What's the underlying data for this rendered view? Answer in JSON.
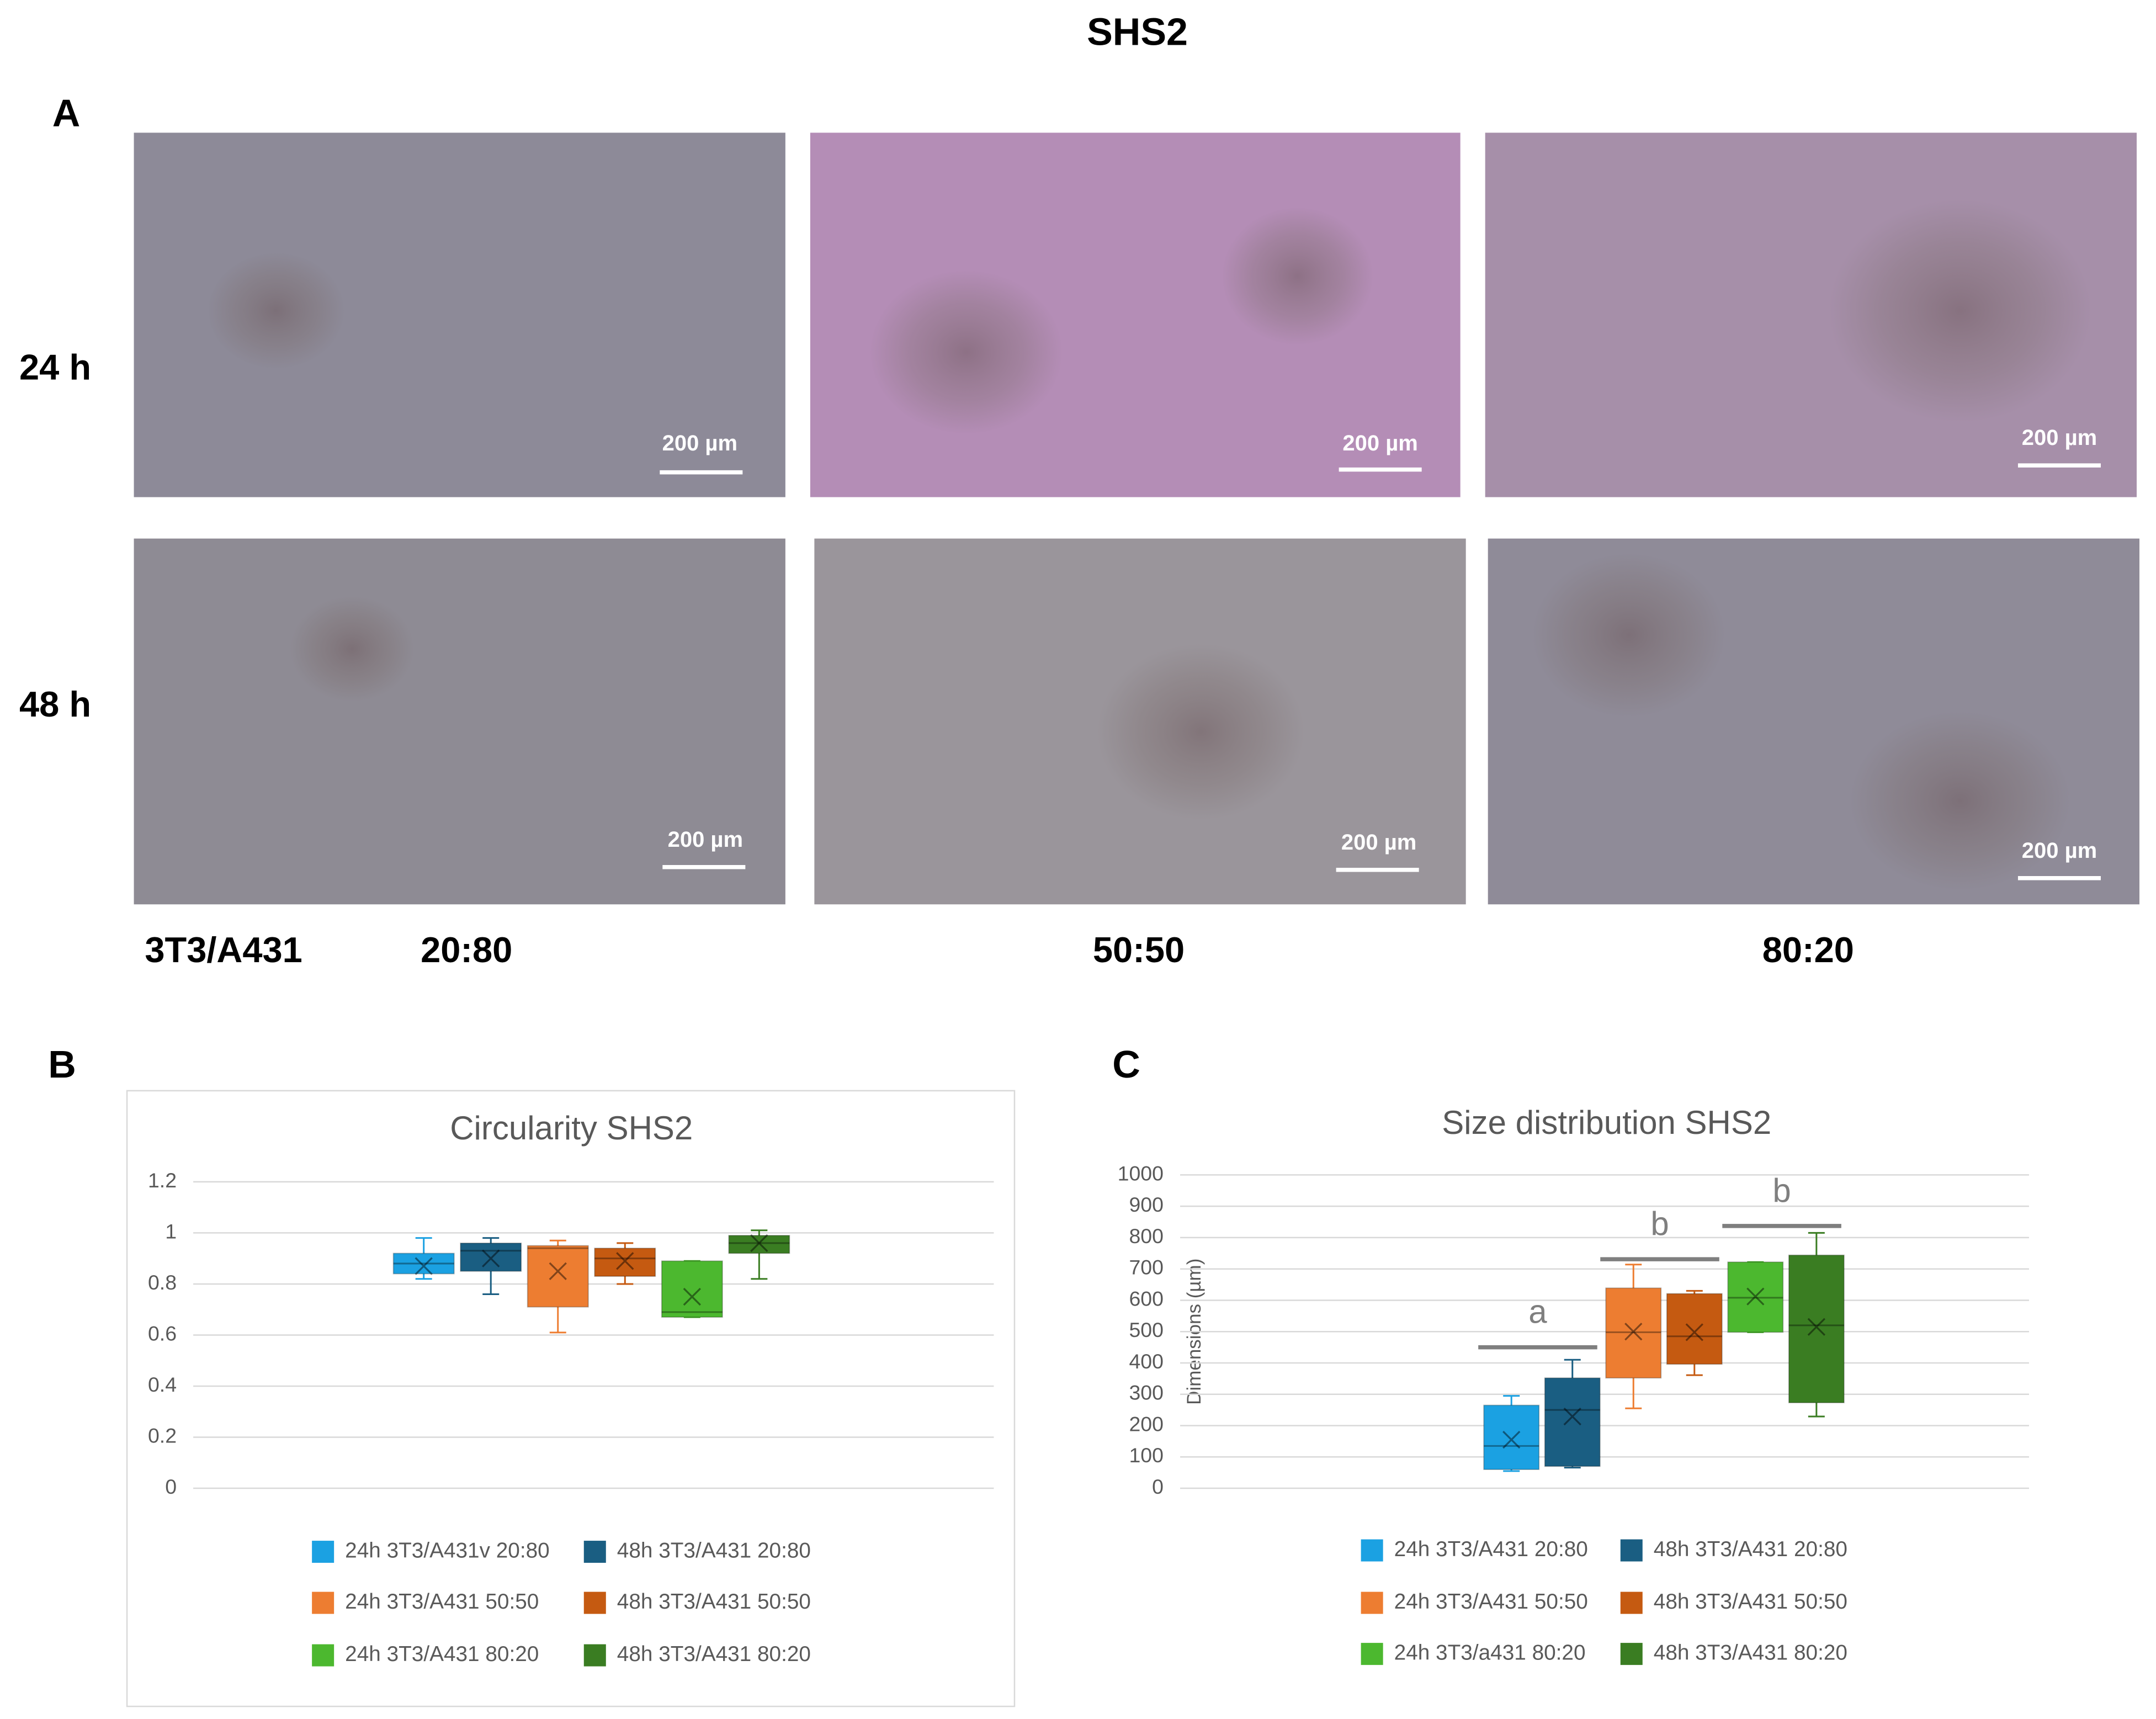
{
  "figure": {
    "title": "SHS2",
    "panels": {
      "a": "A",
      "b": "B",
      "c": "C"
    }
  },
  "micrographs": {
    "rows": [
      "24 h",
      "48 h"
    ],
    "ratio_label": "3T3/A431",
    "columns": [
      "20:80",
      "50:50",
      "80:20"
    ],
    "scale_bars": [
      "200 µm",
      "200 µm",
      "200 µm",
      "200 µm",
      "200 µm",
      "200 µm"
    ]
  },
  "chart_data": [
    {
      "type": "box",
      "title": "Circularity SHS2",
      "ylim": [
        0,
        1.2
      ],
      "yticks": [
        0,
        0.2,
        0.4,
        0.6,
        0.8,
        1,
        1.2
      ],
      "grid": true,
      "series": [
        {
          "name": "24h 3T3/A431v 20:80",
          "color": "#1ba1e2",
          "min": 0.82,
          "q1": 0.84,
          "median": 0.88,
          "q3": 0.92,
          "max": 0.98,
          "mean": 0.87
        },
        {
          "name": "48h 3T3/A431 20:80",
          "color": "#1a5e82",
          "min": 0.76,
          "q1": 0.85,
          "median": 0.93,
          "q3": 0.96,
          "max": 0.98,
          "mean": 0.9
        },
        {
          "name": "24h 3T3/A431 50:50",
          "color": "#ed7d31",
          "min": 0.61,
          "q1": 0.71,
          "median": 0.94,
          "q3": 0.95,
          "max": 0.97,
          "mean": 0.85
        },
        {
          "name": "48h 3T3/A431 50:50",
          "color": "#c55a11",
          "min": 0.8,
          "q1": 0.83,
          "median": 0.9,
          "q3": 0.94,
          "max": 0.96,
          "mean": 0.89
        },
        {
          "name": "24h 3T3/A431 80:20",
          "color": "#4cb82f",
          "min": 0.67,
          "q1": 0.67,
          "median": 0.69,
          "q3": 0.89,
          "max": 0.89,
          "mean": 0.75
        },
        {
          "name": "48h 3T3/A431 80:20",
          "color": "#3a7d22",
          "min": 0.82,
          "q1": 0.92,
          "median": 0.96,
          "q3": 0.99,
          "max": 1.01,
          "mean": 0.96
        }
      ]
    },
    {
      "type": "box",
      "title": "Size distribution SHS2",
      "ylabel": "Dimensions (µm)",
      "ylim": [
        0,
        1000
      ],
      "yticks": [
        0,
        100,
        200,
        300,
        400,
        500,
        600,
        700,
        800,
        900,
        1000
      ],
      "grid": true,
      "series": [
        {
          "name": "24h 3T3/A431 20:80",
          "color": "#1ba1e2",
          "min": 55,
          "q1": 60,
          "median": 135,
          "q3": 265,
          "max": 295,
          "mean": 155
        },
        {
          "name": "48h 3T3/A431 20:80",
          "color": "#1a5e82",
          "min": 66,
          "q1": 70,
          "median": 250,
          "q3": 352,
          "max": 410,
          "mean": 229
        },
        {
          "name": "24h 3T3/A431 50:50",
          "color": "#ed7d31",
          "min": 255,
          "q1": 352,
          "median": 498,
          "q3": 639,
          "max": 714,
          "mean": 500
        },
        {
          "name": "48h 3T3/A431 50:50",
          "color": "#c55a11",
          "min": 361,
          "q1": 396,
          "median": 485,
          "q3": 621,
          "max": 630,
          "mean": 498
        },
        {
          "name": "24h 3T3/a431 80:20",
          "color": "#4cb82f",
          "min": 498,
          "q1": 498,
          "median": 608,
          "q3": 722,
          "max": 722,
          "mean": 612
        },
        {
          "name": "48h 3T3/A431 80:20",
          "color": "#3a7d22",
          "min": 229,
          "q1": 273,
          "median": 520,
          "q3": 744,
          "max": 815,
          "mean": 515
        }
      ],
      "annotations": [
        {
          "text": "a",
          "y": 450
        },
        {
          "text": "b",
          "y": 731
        },
        {
          "text": "b",
          "y": 837
        }
      ]
    }
  ]
}
